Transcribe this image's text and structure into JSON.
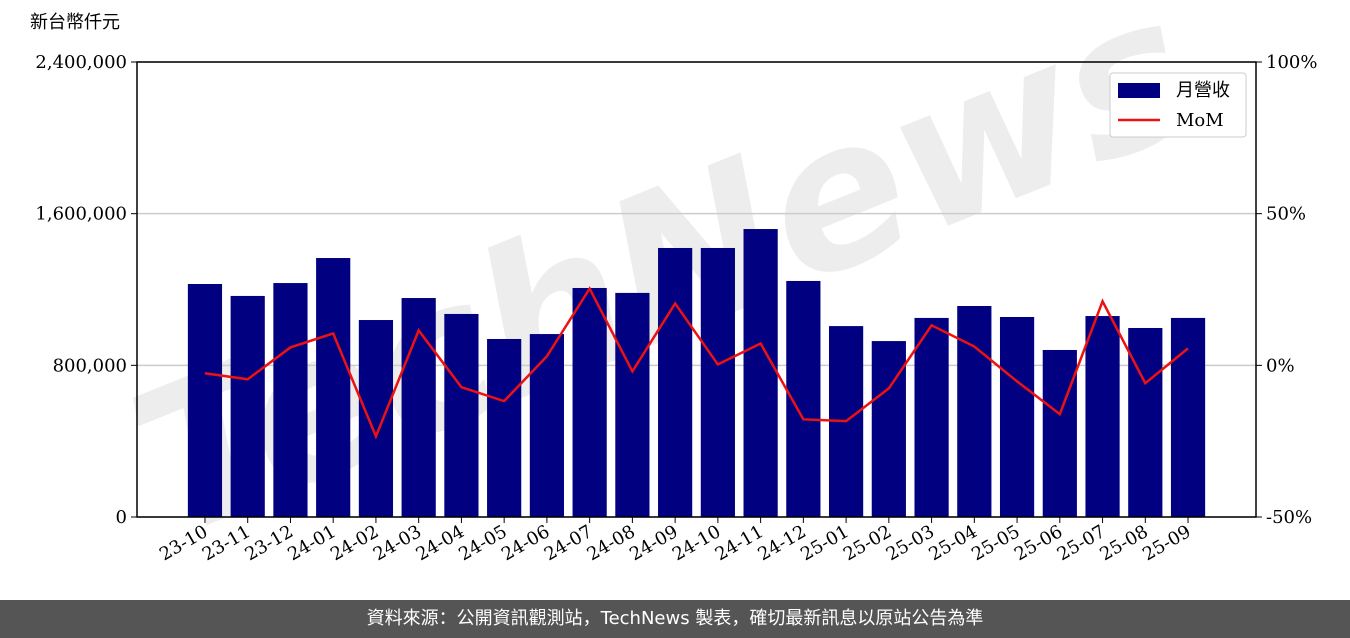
{
  "chart_data": {
    "type": "bar",
    "y_label": "新台幣仟元",
    "watermark": "TechNews",
    "categories": [
      "23-10",
      "23-11",
      "23-12",
      "24-01",
      "24-02",
      "24-03",
      "24-04",
      "24-05",
      "24-06",
      "24-07",
      "24-08",
      "24-09",
      "24-10",
      "24-11",
      "24-12",
      "25-01",
      "25-02",
      "25-03",
      "25-04",
      "25-05",
      "25-06",
      "25-07",
      "25-08",
      "25-09"
    ],
    "series": [
      {
        "name": "月營收",
        "type": "bar",
        "color": "#000080",
        "values": [
          1229000,
          1166000,
          1234000,
          1366000,
          1039000,
          1155000,
          1071000,
          939000,
          965000,
          1208000,
          1182000,
          1419000,
          1419000,
          1519000,
          1245000,
          1007000,
          928000,
          1050000,
          1113000,
          1055000,
          881000,
          1060000,
          997000,
          1050000
        ]
      },
      {
        "name": "MoM",
        "type": "line",
        "color": "#ee1111",
        "axis": "y2",
        "values": [
          -2.6,
          -4.6,
          5.9,
          10.5,
          -23.4,
          11.5,
          -7.2,
          -11.8,
          3.0,
          25.3,
          -2.0,
          20.4,
          0.3,
          7.2,
          -17.8,
          -18.4,
          -7.6,
          13.2,
          6.2,
          -5.3,
          -16.1,
          21.1,
          -5.9,
          5.6
        ]
      }
    ],
    "ylim": [
      0,
      2400000
    ],
    "yticks": [
      0,
      {
        "value": 800000,
        "label": "800,000"
      },
      {
        "value": 1600000,
        "label": "1,600,000"
      },
      {
        "value": 2400000,
        "label": "2,400,000"
      }
    ],
    "y2lim": [
      -50,
      100
    ],
    "y2ticks": [
      {
        "value": -50,
        "label": "-50%"
      },
      {
        "value": 0,
        "label": "0%"
      },
      {
        "value": 50,
        "label": "50%"
      },
      {
        "value": 100,
        "label": "100%"
      }
    ],
    "grid": true,
    "legend": "upper right"
  },
  "footer": "資料來源：公開資訊觀測站，TechNews 製表，確切最新訊息以原站公告為準"
}
